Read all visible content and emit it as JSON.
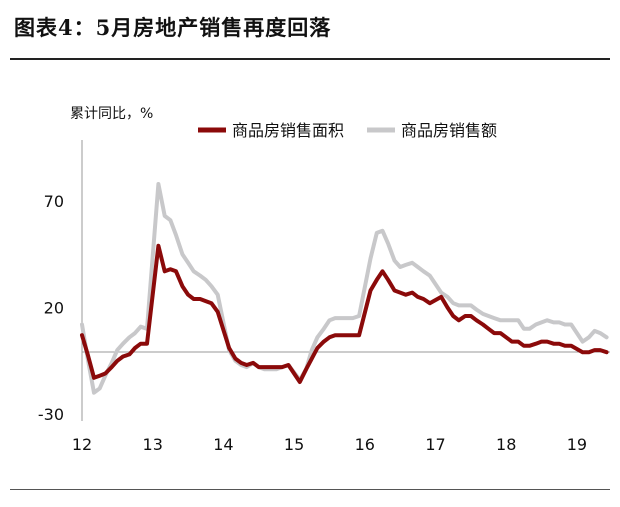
{
  "figure": {
    "title": "图表4：5月房地产销售再度回落"
  },
  "chart_data": {
    "type": "line",
    "ylabel": "累计同比，%",
    "ylim": [
      -30,
      100
    ],
    "yticks": [
      70,
      20,
      -30
    ],
    "xlabels": [
      "12",
      "13",
      "14",
      "15",
      "16",
      "17",
      "18",
      "19"
    ],
    "xlim": [
      2012,
      2019.5
    ],
    "legend_position": "top",
    "grid": false,
    "series": [
      {
        "name": "商品房销售面积",
        "color": "#8b0a0a",
        "points": [
          [
            2012.0,
            7
          ],
          [
            2012.08,
            -2
          ],
          [
            2012.17,
            -13
          ],
          [
            2012.25,
            -12
          ],
          [
            2012.33,
            -11
          ],
          [
            2012.42,
            -8
          ],
          [
            2012.5,
            -5
          ],
          [
            2012.58,
            -3
          ],
          [
            2012.67,
            -2
          ],
          [
            2012.75,
            1
          ],
          [
            2012.83,
            3
          ],
          [
            2012.92,
            3
          ],
          [
            2013.08,
            49
          ],
          [
            2013.17,
            37
          ],
          [
            2013.25,
            38
          ],
          [
            2013.33,
            37
          ],
          [
            2013.42,
            30
          ],
          [
            2013.5,
            26
          ],
          [
            2013.58,
            24
          ],
          [
            2013.67,
            24
          ],
          [
            2013.75,
            23
          ],
          [
            2013.83,
            22
          ],
          [
            2013.92,
            18
          ],
          [
            2014.08,
            1
          ],
          [
            2014.17,
            -4
          ],
          [
            2014.25,
            -6
          ],
          [
            2014.33,
            -7
          ],
          [
            2014.42,
            -6
          ],
          [
            2014.5,
            -8
          ],
          [
            2014.58,
            -8
          ],
          [
            2014.67,
            -8
          ],
          [
            2014.75,
            -8
          ],
          [
            2014.83,
            -8
          ],
          [
            2014.92,
            -7
          ],
          [
            2015.08,
            -15
          ],
          [
            2015.17,
            -9
          ],
          [
            2015.25,
            -4
          ],
          [
            2015.33,
            1
          ],
          [
            2015.42,
            4
          ],
          [
            2015.5,
            6
          ],
          [
            2015.58,
            7
          ],
          [
            2015.67,
            7
          ],
          [
            2015.75,
            7
          ],
          [
            2015.83,
            7
          ],
          [
            2015.92,
            7
          ],
          [
            2016.08,
            28
          ],
          [
            2016.17,
            33
          ],
          [
            2016.25,
            37
          ],
          [
            2016.33,
            33
          ],
          [
            2016.42,
            28
          ],
          [
            2016.5,
            27
          ],
          [
            2016.58,
            26
          ],
          [
            2016.67,
            27
          ],
          [
            2016.75,
            25
          ],
          [
            2016.83,
            24
          ],
          [
            2016.92,
            22
          ],
          [
            2017.08,
            25
          ],
          [
            2017.17,
            20
          ],
          [
            2017.25,
            16
          ],
          [
            2017.33,
            14
          ],
          [
            2017.42,
            16
          ],
          [
            2017.5,
            16
          ],
          [
            2017.58,
            14
          ],
          [
            2017.67,
            12
          ],
          [
            2017.75,
            10
          ],
          [
            2017.83,
            8
          ],
          [
            2017.92,
            8
          ],
          [
            2018.08,
            4
          ],
          [
            2018.17,
            4
          ],
          [
            2018.25,
            2
          ],
          [
            2018.33,
            2
          ],
          [
            2018.42,
            3
          ],
          [
            2018.5,
            4
          ],
          [
            2018.58,
            4
          ],
          [
            2018.67,
            3
          ],
          [
            2018.75,
            3
          ],
          [
            2018.83,
            2
          ],
          [
            2018.92,
            2
          ],
          [
            2019.08,
            -1
          ],
          [
            2019.17,
            -1
          ],
          [
            2019.25,
            0
          ],
          [
            2019.33,
            0
          ],
          [
            2019.42,
            -1
          ]
        ]
      },
      {
        "name": "商品房销售额",
        "color": "#c8c8ca",
        "points": [
          [
            2012.0,
            12
          ],
          [
            2012.08,
            -4
          ],
          [
            2012.17,
            -20
          ],
          [
            2012.25,
            -18
          ],
          [
            2012.33,
            -12
          ],
          [
            2012.42,
            -6
          ],
          [
            2012.5,
            0
          ],
          [
            2012.58,
            3
          ],
          [
            2012.67,
            6
          ],
          [
            2012.75,
            8
          ],
          [
            2012.83,
            11
          ],
          [
            2012.92,
            10
          ],
          [
            2013.08,
            78
          ],
          [
            2013.17,
            63
          ],
          [
            2013.25,
            61
          ],
          [
            2013.33,
            54
          ],
          [
            2013.42,
            45
          ],
          [
            2013.5,
            41
          ],
          [
            2013.58,
            37
          ],
          [
            2013.67,
            35
          ],
          [
            2013.75,
            33
          ],
          [
            2013.83,
            30
          ],
          [
            2013.92,
            26
          ],
          [
            2014.08,
            0
          ],
          [
            2014.17,
            -5
          ],
          [
            2014.25,
            -7
          ],
          [
            2014.33,
            -8
          ],
          [
            2014.42,
            -6
          ],
          [
            2014.5,
            -8
          ],
          [
            2014.58,
            -9
          ],
          [
            2014.67,
            -9
          ],
          [
            2014.75,
            -9
          ],
          [
            2014.83,
            -8
          ],
          [
            2014.92,
            -7
          ],
          [
            2015.08,
            -14
          ],
          [
            2015.17,
            -9
          ],
          [
            2015.25,
            0
          ],
          [
            2015.33,
            6
          ],
          [
            2015.42,
            10
          ],
          [
            2015.5,
            14
          ],
          [
            2015.58,
            15
          ],
          [
            2015.67,
            15
          ],
          [
            2015.75,
            15
          ],
          [
            2015.83,
            15
          ],
          [
            2015.92,
            16
          ],
          [
            2016.08,
            43
          ],
          [
            2016.17,
            55
          ],
          [
            2016.25,
            56
          ],
          [
            2016.33,
            50
          ],
          [
            2016.42,
            42
          ],
          [
            2016.5,
            39
          ],
          [
            2016.58,
            40
          ],
          [
            2016.67,
            41
          ],
          [
            2016.75,
            39
          ],
          [
            2016.83,
            37
          ],
          [
            2016.92,
            35
          ],
          [
            2017.08,
            27
          ],
          [
            2017.17,
            25
          ],
          [
            2017.25,
            22
          ],
          [
            2017.33,
            21
          ],
          [
            2017.42,
            21
          ],
          [
            2017.5,
            21
          ],
          [
            2017.58,
            19
          ],
          [
            2017.67,
            17
          ],
          [
            2017.75,
            16
          ],
          [
            2017.83,
            15
          ],
          [
            2017.92,
            14
          ],
          [
            2018.08,
            14
          ],
          [
            2018.17,
            14
          ],
          [
            2018.25,
            10
          ],
          [
            2018.33,
            10
          ],
          [
            2018.42,
            12
          ],
          [
            2018.5,
            13
          ],
          [
            2018.58,
            14
          ],
          [
            2018.67,
            13
          ],
          [
            2018.75,
            13
          ],
          [
            2018.83,
            12
          ],
          [
            2018.92,
            12
          ],
          [
            2019.08,
            4
          ],
          [
            2019.17,
            6
          ],
          [
            2019.25,
            9
          ],
          [
            2019.33,
            8
          ],
          [
            2019.42,
            6
          ]
        ]
      }
    ]
  }
}
